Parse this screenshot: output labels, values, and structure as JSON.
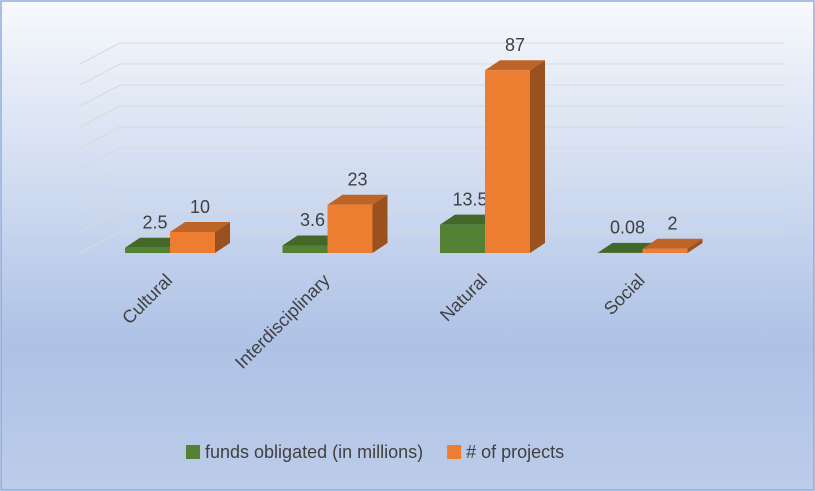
{
  "chart_data": {
    "type": "bar3d",
    "categories": [
      "Cultural",
      "Interdisciplinary",
      "Natural",
      "Social"
    ],
    "series": [
      {
        "name": "funds obligated (in millions)",
        "color": "#548235",
        "values": [
          2.5,
          3.6,
          13.5,
          0.08
        ]
      },
      {
        "name": "# of projects",
        "color": "#ed7d31",
        "values": [
          10,
          23,
          87,
          2
        ]
      }
    ],
    "ylim": [
      0,
      90
    ],
    "yticks": [
      0,
      10,
      20,
      30,
      40,
      50,
      60,
      70,
      80,
      90
    ],
    "grid": true,
    "legend": "bottom"
  }
}
